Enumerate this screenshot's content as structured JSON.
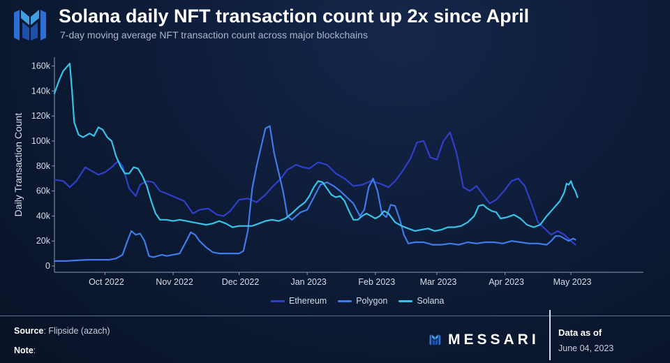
{
  "header": {
    "title": "Solana daily NFT transaction count up 2x since April",
    "subtitle": "7-day moving average NFT transaction count across major blockchains"
  },
  "colors": {
    "ethereum": "#2f3fc9",
    "polygon": "#3f7bea",
    "solana": "#38c3e8",
    "axis": "#8d99b3",
    "brand": "#3f9fe0"
  },
  "chart_data": {
    "type": "line",
    "title": "Solana daily NFT transaction count up 2x since April",
    "xlabel": "",
    "ylabel": "Daily Transaction Count",
    "xlim": [
      0,
      268
    ],
    "ylim": [
      -5000,
      167000
    ],
    "yticks": [
      0,
      20000,
      40000,
      60000,
      80000,
      100000,
      120000,
      140000,
      160000
    ],
    "ytick_labels": [
      "0",
      "20k",
      "40k",
      "60k",
      "80k",
      "100k",
      "120k",
      "140k",
      "160k"
    ],
    "x_ticks": [
      {
        "day": 23,
        "label": "Oct 2022"
      },
      {
        "day": 54,
        "label": "Nov 2022"
      },
      {
        "day": 84,
        "label": "Dec 2022"
      },
      {
        "day": 115,
        "label": "Jan 2023"
      },
      {
        "day": 146,
        "label": "Feb 2023"
      },
      {
        "day": 174,
        "label": "Mar 2023"
      },
      {
        "day": 205,
        "label": "Apr 2023"
      },
      {
        "day": 235,
        "label": "May 2023"
      }
    ],
    "x_unit": "days since 2022-09-08",
    "series": [
      {
        "name": "Ethereum",
        "color": "#2f3fc9",
        "points": [
          [
            0,
            69000
          ],
          [
            4,
            68000
          ],
          [
            7,
            63000
          ],
          [
            10,
            68000
          ],
          [
            14,
            79000
          ],
          [
            17,
            76000
          ],
          [
            20,
            73000
          ],
          [
            23,
            75000
          ],
          [
            26,
            79000
          ],
          [
            29,
            84000
          ],
          [
            31,
            80000
          ],
          [
            34,
            62000
          ],
          [
            37,
            56000
          ],
          [
            39,
            65000
          ],
          [
            42,
            68000
          ],
          [
            45,
            67000
          ],
          [
            48,
            60000
          ],
          [
            51,
            58000
          ],
          [
            55,
            55000
          ],
          [
            59,
            52000
          ],
          [
            63,
            42000
          ],
          [
            66,
            45000
          ],
          [
            70,
            46000
          ],
          [
            74,
            41000
          ],
          [
            77,
            40000
          ],
          [
            80,
            44000
          ],
          [
            84,
            53000
          ],
          [
            88,
            54000
          ],
          [
            92,
            51000
          ],
          [
            96,
            57000
          ],
          [
            99,
            63000
          ],
          [
            103,
            70000
          ],
          [
            106,
            77000
          ],
          [
            110,
            81000
          ],
          [
            113,
            79000
          ],
          [
            116,
            78000
          ],
          [
            120,
            83000
          ],
          [
            124,
            81000
          ],
          [
            128,
            74000
          ],
          [
            132,
            70000
          ],
          [
            136,
            64000
          ],
          [
            140,
            65000
          ],
          [
            144,
            68000
          ],
          [
            148,
            66000
          ],
          [
            152,
            63000
          ],
          [
            155,
            68000
          ],
          [
            158,
            75000
          ],
          [
            162,
            86000
          ],
          [
            165,
            99000
          ],
          [
            168,
            100000
          ],
          [
            171,
            87000
          ],
          [
            174,
            85000
          ],
          [
            177,
            100000
          ],
          [
            180,
            107000
          ],
          [
            183,
            90000
          ],
          [
            186,
            63000
          ],
          [
            189,
            60000
          ],
          [
            192,
            64000
          ],
          [
            195,
            57000
          ],
          [
            198,
            50000
          ],
          [
            201,
            53000
          ],
          [
            205,
            61000
          ],
          [
            208,
            68000
          ],
          [
            211,
            70000
          ],
          [
            214,
            64000
          ],
          [
            217,
            50000
          ],
          [
            220,
            35000
          ],
          [
            223,
            30000
          ],
          [
            226,
            25000
          ],
          [
            229,
            28000
          ],
          [
            232,
            25000
          ],
          [
            235,
            20000
          ],
          [
            237,
            17000
          ]
        ]
      },
      {
        "name": "Polygon",
        "color": "#3f7bea",
        "points": [
          [
            0,
            4000
          ],
          [
            5,
            4000
          ],
          [
            10,
            4500
          ],
          [
            15,
            5000
          ],
          [
            20,
            5000
          ],
          [
            25,
            5000
          ],
          [
            28,
            6000
          ],
          [
            31,
            9000
          ],
          [
            33,
            19000
          ],
          [
            35,
            28000
          ],
          [
            37,
            25000
          ],
          [
            39,
            26000
          ],
          [
            41,
            20000
          ],
          [
            43,
            8000
          ],
          [
            45,
            7000
          ],
          [
            47,
            8000
          ],
          [
            49,
            9000
          ],
          [
            51,
            8000
          ],
          [
            54,
            9000
          ],
          [
            57,
            10000
          ],
          [
            60,
            20000
          ],
          [
            62,
            27000
          ],
          [
            64,
            25000
          ],
          [
            66,
            20000
          ],
          [
            69,
            15000
          ],
          [
            72,
            11000
          ],
          [
            75,
            10000
          ],
          [
            78,
            10000
          ],
          [
            81,
            10000
          ],
          [
            84,
            10000
          ],
          [
            86,
            12000
          ],
          [
            88,
            28000
          ],
          [
            90,
            62000
          ],
          [
            92,
            80000
          ],
          [
            94,
            95000
          ],
          [
            96,
            110000
          ],
          [
            98,
            112000
          ],
          [
            100,
            90000
          ],
          [
            102,
            75000
          ],
          [
            104,
            60000
          ],
          [
            106,
            40000
          ],
          [
            108,
            37000
          ],
          [
            110,
            40000
          ],
          [
            112,
            43000
          ],
          [
            115,
            45000
          ],
          [
            118,
            55000
          ],
          [
            121,
            65000
          ],
          [
            124,
            67000
          ],
          [
            127,
            64000
          ],
          [
            130,
            60000
          ],
          [
            133,
            55000
          ],
          [
            136,
            50000
          ],
          [
            139,
            40000
          ],
          [
            141,
            45000
          ],
          [
            143,
            63000
          ],
          [
            145,
            70000
          ],
          [
            147,
            60000
          ],
          [
            149,
            42000
          ],
          [
            151,
            39000
          ],
          [
            153,
            49000
          ],
          [
            155,
            48000
          ],
          [
            157,
            38000
          ],
          [
            159,
            25000
          ],
          [
            161,
            18000
          ],
          [
            164,
            19000
          ],
          [
            168,
            19000
          ],
          [
            172,
            17000
          ],
          [
            176,
            17000
          ],
          [
            180,
            18000
          ],
          [
            184,
            17000
          ],
          [
            188,
            19000
          ],
          [
            192,
            18000
          ],
          [
            196,
            19000
          ],
          [
            200,
            19000
          ],
          [
            204,
            18000
          ],
          [
            208,
            20000
          ],
          [
            212,
            19000
          ],
          [
            216,
            18000
          ],
          [
            220,
            18000
          ],
          [
            224,
            17000
          ],
          [
            226,
            20000
          ],
          [
            228,
            24000
          ],
          [
            230,
            24000
          ],
          [
            232,
            22000
          ],
          [
            234,
            20000
          ],
          [
            236,
            22000
          ],
          [
            237,
            21000
          ]
        ]
      },
      {
        "name": "Solana",
        "color": "#38c3e8",
        "points": [
          [
            0,
            138000
          ],
          [
            2,
            148000
          ],
          [
            4,
            156000
          ],
          [
            6,
            160000
          ],
          [
            7,
            162000
          ],
          [
            8,
            140000
          ],
          [
            9,
            115000
          ],
          [
            11,
            105000
          ],
          [
            13,
            103000
          ],
          [
            16,
            106000
          ],
          [
            18,
            104000
          ],
          [
            20,
            111000
          ],
          [
            22,
            109000
          ],
          [
            24,
            103000
          ],
          [
            26,
            100000
          ],
          [
            28,
            88000
          ],
          [
            30,
            80000
          ],
          [
            32,
            74000
          ],
          [
            34,
            74000
          ],
          [
            36,
            79000
          ],
          [
            38,
            78000
          ],
          [
            40,
            72000
          ],
          [
            42,
            64000
          ],
          [
            44,
            52000
          ],
          [
            46,
            42000
          ],
          [
            48,
            37000
          ],
          [
            51,
            37000
          ],
          [
            54,
            36000
          ],
          [
            57,
            37000
          ],
          [
            60,
            36000
          ],
          [
            63,
            35000
          ],
          [
            66,
            34000
          ],
          [
            69,
            33000
          ],
          [
            72,
            34000
          ],
          [
            75,
            36000
          ],
          [
            78,
            34000
          ],
          [
            81,
            31000
          ],
          [
            84,
            32000
          ],
          [
            87,
            32000
          ],
          [
            90,
            32000
          ],
          [
            93,
            34000
          ],
          [
            96,
            36000
          ],
          [
            99,
            37000
          ],
          [
            102,
            36000
          ],
          [
            105,
            38000
          ],
          [
            108,
            42000
          ],
          [
            111,
            47000
          ],
          [
            114,
            51000
          ],
          [
            116,
            56000
          ],
          [
            118,
            63000
          ],
          [
            120,
            68000
          ],
          [
            122,
            67000
          ],
          [
            124,
            62000
          ],
          [
            126,
            57000
          ],
          [
            128,
            55000
          ],
          [
            130,
            56000
          ],
          [
            132,
            52000
          ],
          [
            134,
            44000
          ],
          [
            136,
            37000
          ],
          [
            138,
            37000
          ],
          [
            140,
            40000
          ],
          [
            142,
            42000
          ],
          [
            144,
            40000
          ],
          [
            146,
            38000
          ],
          [
            148,
            40000
          ],
          [
            150,
            44000
          ],
          [
            152,
            42000
          ],
          [
            155,
            35000
          ],
          [
            158,
            32000
          ],
          [
            161,
            30000
          ],
          [
            164,
            28000
          ],
          [
            167,
            29000
          ],
          [
            170,
            30000
          ],
          [
            173,
            28000
          ],
          [
            176,
            29000
          ],
          [
            179,
            31000
          ],
          [
            182,
            31000
          ],
          [
            185,
            32000
          ],
          [
            188,
            35000
          ],
          [
            191,
            40000
          ],
          [
            193,
            48000
          ],
          [
            195,
            49000
          ],
          [
            197,
            46000
          ],
          [
            199,
            44000
          ],
          [
            201,
            43000
          ],
          [
            203,
            38000
          ],
          [
            206,
            39000
          ],
          [
            209,
            41000
          ],
          [
            212,
            38000
          ],
          [
            215,
            33000
          ],
          [
            218,
            31000
          ],
          [
            221,
            33000
          ],
          [
            224,
            40000
          ],
          [
            227,
            46000
          ],
          [
            230,
            52000
          ],
          [
            232,
            59000
          ],
          [
            233,
            66000
          ],
          [
            234,
            65000
          ],
          [
            235,
            68000
          ],
          [
            236,
            63000
          ],
          [
            237,
            60000
          ],
          [
            238,
            55000
          ]
        ]
      }
    ]
  },
  "legend": [
    {
      "name": "Ethereum",
      "color": "#2f3fc9"
    },
    {
      "name": "Polygon",
      "color": "#3f7bea"
    },
    {
      "name": "Solana",
      "color": "#38c3e8"
    }
  ],
  "footer": {
    "source_label": "Source",
    "source_value": "Flipside (azach)",
    "note_label": "Note",
    "brand_name": "MESSARI",
    "data_as_of_label": "Data as of",
    "data_as_of_date": "June 04, 2023"
  }
}
